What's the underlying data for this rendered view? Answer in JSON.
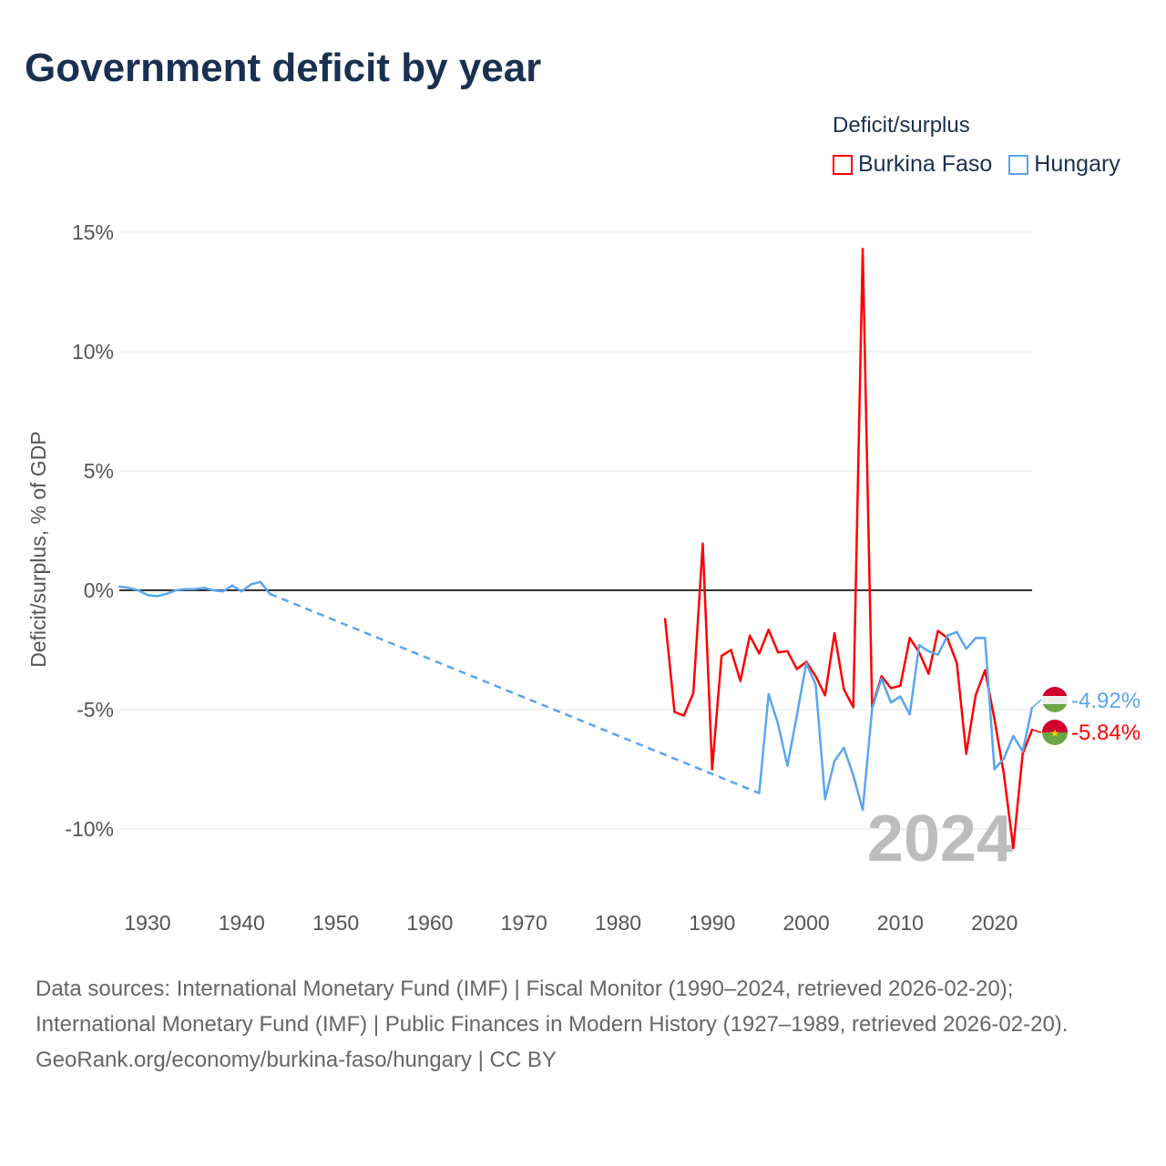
{
  "title": "Government deficit by year",
  "legend": {
    "title": "Deficit/surplus",
    "items": [
      "Burkina Faso",
      "Hungary"
    ]
  },
  "colors": {
    "burkina": "#ff0000",
    "hungary": "#5aa5f0"
  },
  "year_watermark": "2024",
  "end_labels": {
    "hungary": "-4.92%",
    "burkina": "-5.84%"
  },
  "footer": {
    "sources": "Data sources: International Monetary Fund (IMF) | Fiscal Monitor (1990–2024, retrieved 2026-02-20); International Monetary Fund (IMF) | Public Finances in Modern History (1927–1989, retrieved 2026-02-20).",
    "credit": "GeoRank.org/economy/burkina-faso/hungary | CC BY"
  },
  "chart_data": {
    "type": "line",
    "title": "Government deficit by year",
    "xlabel": "",
    "ylabel": "Deficit/surplus, % of GDP",
    "xlim": [
      1927,
      2024
    ],
    "ylim": [
      -12.5,
      15.5
    ],
    "xticks": [
      1930,
      1940,
      1950,
      1960,
      1970,
      1980,
      1990,
      2000,
      2010,
      2020
    ],
    "yticks": [
      15,
      10,
      5,
      0,
      -5,
      -10
    ],
    "ytick_labels": [
      "15%",
      "10%",
      "5%",
      "0%",
      "-5%",
      "-10%"
    ],
    "legend_position": "top-right",
    "series": [
      {
        "name": "Burkina Faso",
        "x": [
          1985,
          1986,
          1987,
          1988,
          1989,
          1990,
          1991,
          1992,
          1993,
          1994,
          1995,
          1996,
          1997,
          1998,
          1999,
          2000,
          2001,
          2002,
          2003,
          2004,
          2005,
          2006,
          2007,
          2008,
          2009,
          2010,
          2011,
          2012,
          2013,
          2014,
          2015,
          2016,
          2017,
          2018,
          2019,
          2020,
          2021,
          2022,
          2023,
          2024
        ],
        "y": [
          -1.2,
          -5.1,
          -5.25,
          -4.3,
          1.95,
          -7.5,
          -2.75,
          -2.5,
          -3.8,
          -1.9,
          -2.65,
          -1.65,
          -2.6,
          -2.55,
          -3.3,
          -3.0,
          -3.6,
          -4.4,
          -1.8,
          -4.15,
          -4.9,
          14.3,
          -4.9,
          -3.6,
          -4.1,
          -4.0,
          -2.0,
          -2.6,
          -3.5,
          -1.7,
          -2.0,
          -3.05,
          -6.85,
          -4.4,
          -3.35,
          -5.4,
          -7.7,
          -10.8,
          -6.85,
          -5.84
        ]
      },
      {
        "name": "Hungary",
        "x": [
          1927,
          1928,
          1929,
          1930,
          1931,
          1932,
          1933,
          1934,
          1935,
          1936,
          1937,
          1938,
          1939,
          1940,
          1941,
          1942,
          1943,
          1995,
          1996,
          1997,
          1998,
          1999,
          2000,
          2001,
          2002,
          2003,
          2004,
          2005,
          2006,
          2007,
          2008,
          2009,
          2010,
          2011,
          2012,
          2013,
          2014,
          2015,
          2016,
          2017,
          2018,
          2019,
          2020,
          2021,
          2022,
          2023,
          2024
        ],
        "y": [
          0.15,
          0.1,
          0.0,
          -0.2,
          -0.25,
          -0.15,
          0,
          0.05,
          0.05,
          0.1,
          0,
          -0.05,
          0.2,
          -0.05,
          0.25,
          0.35,
          -0.15,
          -8.5,
          -4.35,
          -5.6,
          -7.35,
          -5.25,
          -3.05,
          -3.95,
          -8.75,
          -7.15,
          -6.6,
          -7.75,
          -9.2,
          -4.95,
          -3.7,
          -4.7,
          -4.45,
          -5.2,
          -2.3,
          -2.55,
          -2.7,
          -1.9,
          -1.75,
          -2.45,
          -2.0,
          -2.0,
          -7.5,
          -7.05,
          -6.1,
          -6.75,
          -4.92
        ],
        "gap_after": 1943
      }
    ]
  }
}
